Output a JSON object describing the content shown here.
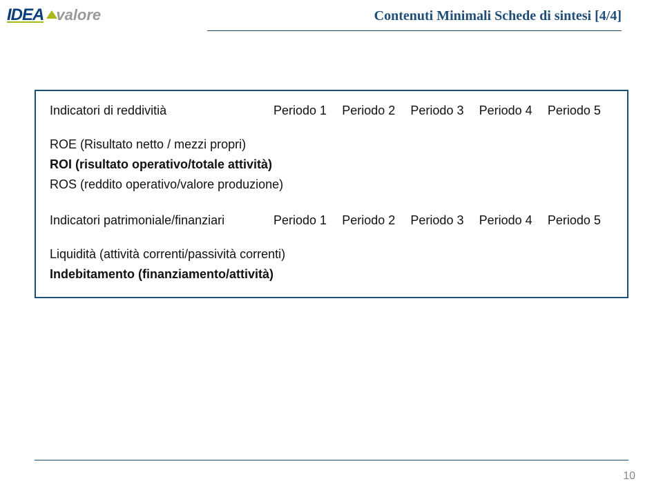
{
  "header": {
    "title": "Contenuti Minimali Schede di sintesi [4/4]",
    "title_color": "#1f4e79",
    "rule_color": "#1f4e79"
  },
  "logo": {
    "primary_text": "IDEA",
    "secondary_text": "valore",
    "primary_color": "#0a3f7a",
    "secondary_color": "#999999",
    "accent_color": "#aab919"
  },
  "table": {
    "border_color": "#1f4e79",
    "section1": {
      "header_label": "Indicatori di reddivitià",
      "periods": [
        "Periodo 1",
        "Periodo 2",
        "Periodo 3",
        "Periodo 4",
        "Periodo 5"
      ],
      "rows": [
        {
          "label": "ROE (Risultato netto / mezzi propri)",
          "bold": false
        },
        {
          "label": "ROI (risultato operativo/totale attività)",
          "bold": true
        },
        {
          "label": "ROS (reddito operativo/valore produzione)",
          "bold": false
        }
      ]
    },
    "section2": {
      "header_label": "Indicatori patrimoniale/finanziari",
      "periods": [
        "Periodo 1",
        "Periodo 2",
        "Periodo 3",
        "Periodo 4",
        "Periodo 5"
      ],
      "rows": [
        {
          "label": "Liquidità (attività correnti/passività correnti)",
          "bold": false
        },
        {
          "label": "Indebitamento (finanziamento/attività)",
          "bold": true
        }
      ]
    }
  },
  "page_number": "10",
  "colors": {
    "text": "#111111",
    "page_number": "#888888",
    "background": "#ffffff"
  },
  "fonts": {
    "body_size": 18,
    "title_size": 20
  }
}
